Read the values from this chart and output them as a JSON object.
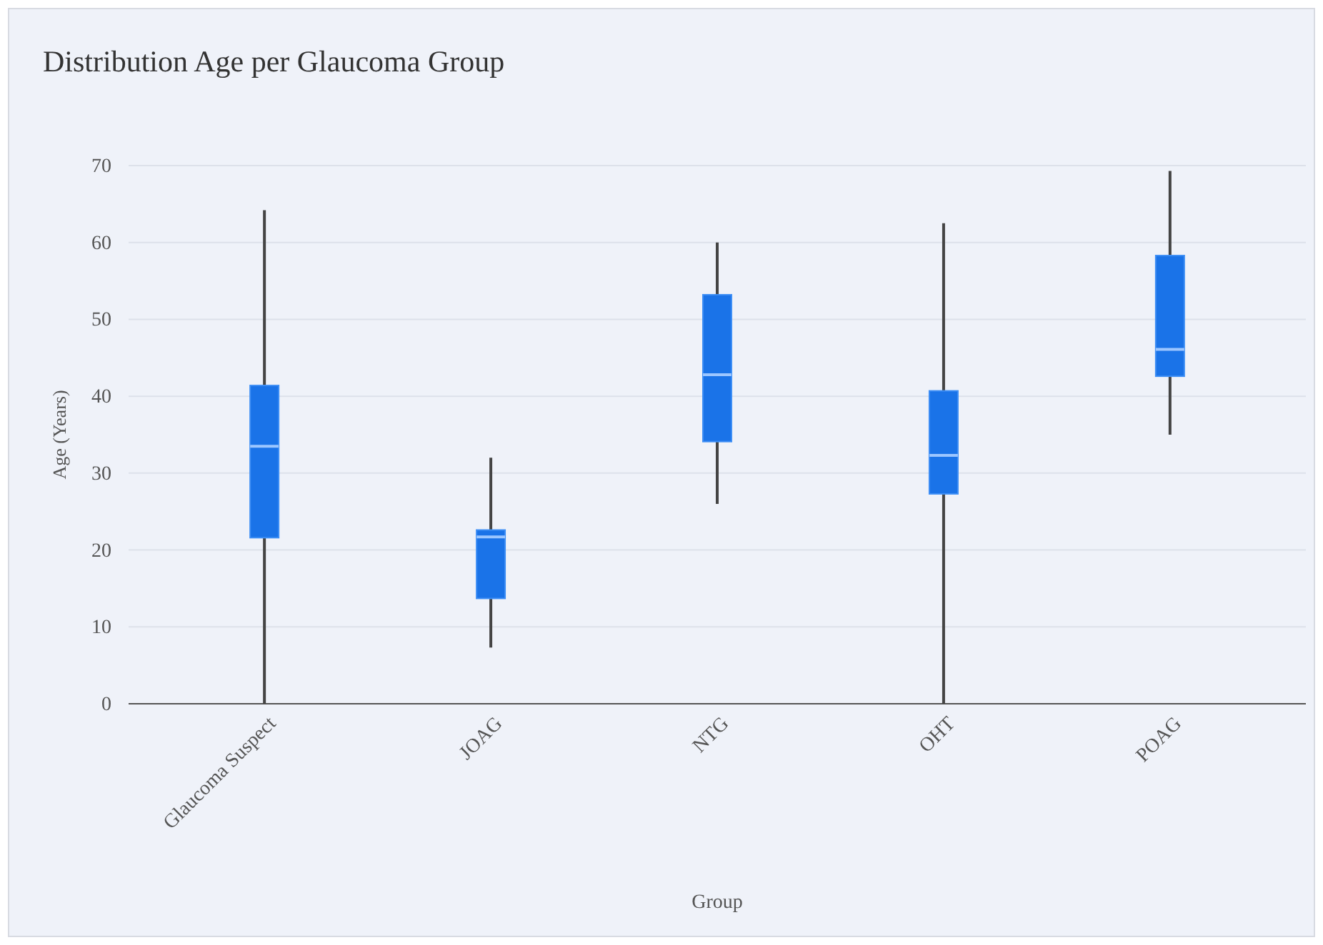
{
  "chart_data": {
    "type": "box",
    "title": "Distribution Age per Glaucoma Group",
    "xlabel": "Group",
    "ylabel": "Age (Years)",
    "categories": [
      "Glaucoma Suspect",
      "JOAG",
      "NTG",
      "OHT",
      "POAG"
    ],
    "color": "#1a73e8",
    "boxes": [
      {
        "low": 0,
        "q1": 21.6,
        "median": 33.5,
        "q3": 41.4,
        "high": 64.2
      },
      {
        "low": 7.3,
        "q1": 13.7,
        "median": 21.7,
        "q3": 22.6,
        "high": 32.0
      },
      {
        "low": 26.0,
        "q1": 34.1,
        "median": 42.8,
        "q3": 53.2,
        "high": 60.0
      },
      {
        "low": 0,
        "q1": 27.3,
        "median": 32.3,
        "q3": 40.7,
        "high": 62.5
      },
      {
        "low": 35.0,
        "q1": 42.6,
        "median": 46.1,
        "q3": 58.3,
        "high": 69.3
      }
    ],
    "ylim": [
      0,
      70
    ],
    "yticks": [
      0,
      10,
      20,
      30,
      40,
      50,
      60,
      70
    ],
    "grid": "y"
  }
}
